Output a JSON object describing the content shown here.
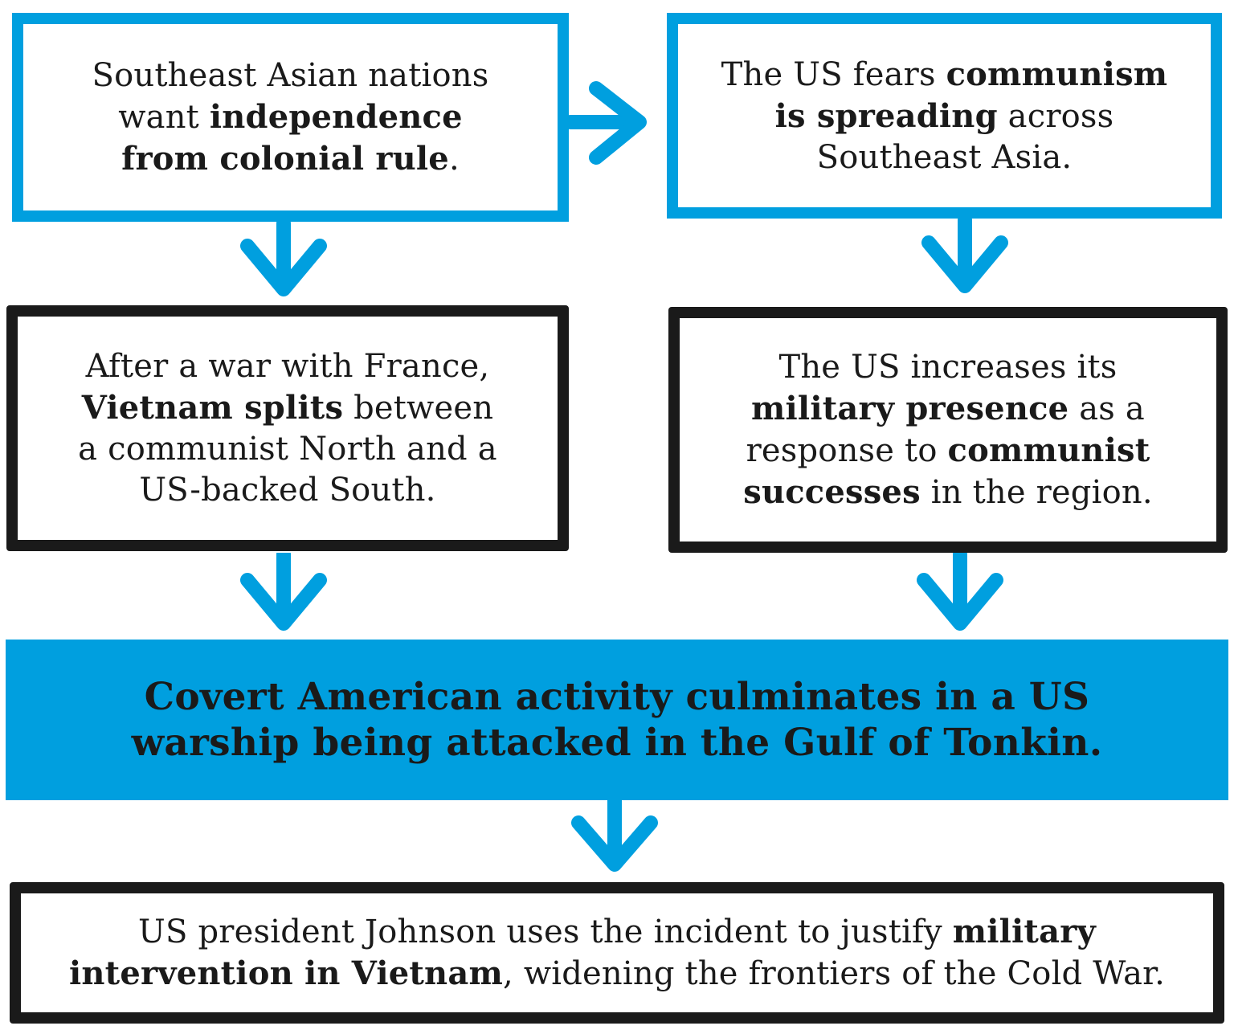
{
  "boxes": {
    "b1": {
      "t1": "Southeast Asian nations",
      "t2": "want ",
      "t3": "independence",
      "t4": "from colonial rule",
      "t5": "."
    },
    "b2": {
      "t1": "The US fears ",
      "t2": "communism",
      "t3": "is spreading",
      "t4": " across",
      "t5": "Southeast Asia."
    },
    "b3": {
      "t1": "After a war with France,",
      "t2": "Vietnam splits",
      "t3": " between",
      "t4": "a communist North and a",
      "t5": "US-backed South."
    },
    "b4": {
      "t1": "The US increases its",
      "t2": "military presence",
      "t3": " as a",
      "t4": "response to ",
      "t5": "communist",
      "t6": "successes",
      "t7": " in the region."
    },
    "banner": {
      "line1": "Covert American activity culminates in a US",
      "line2": "warship being attacked in the Gulf of Tonkin."
    },
    "b5": {
      "t1": "US president Johnson uses the incident to justify ",
      "t2": "military",
      "t3": "intervention in Vietnam",
      "t4": ", widening the frontiers of the Cold War."
    }
  },
  "colors": {
    "accent_blue": "#009fdf",
    "ink": "#1a1a1a"
  },
  "icons": {
    "arrow": "chevron-arrow-icon"
  }
}
